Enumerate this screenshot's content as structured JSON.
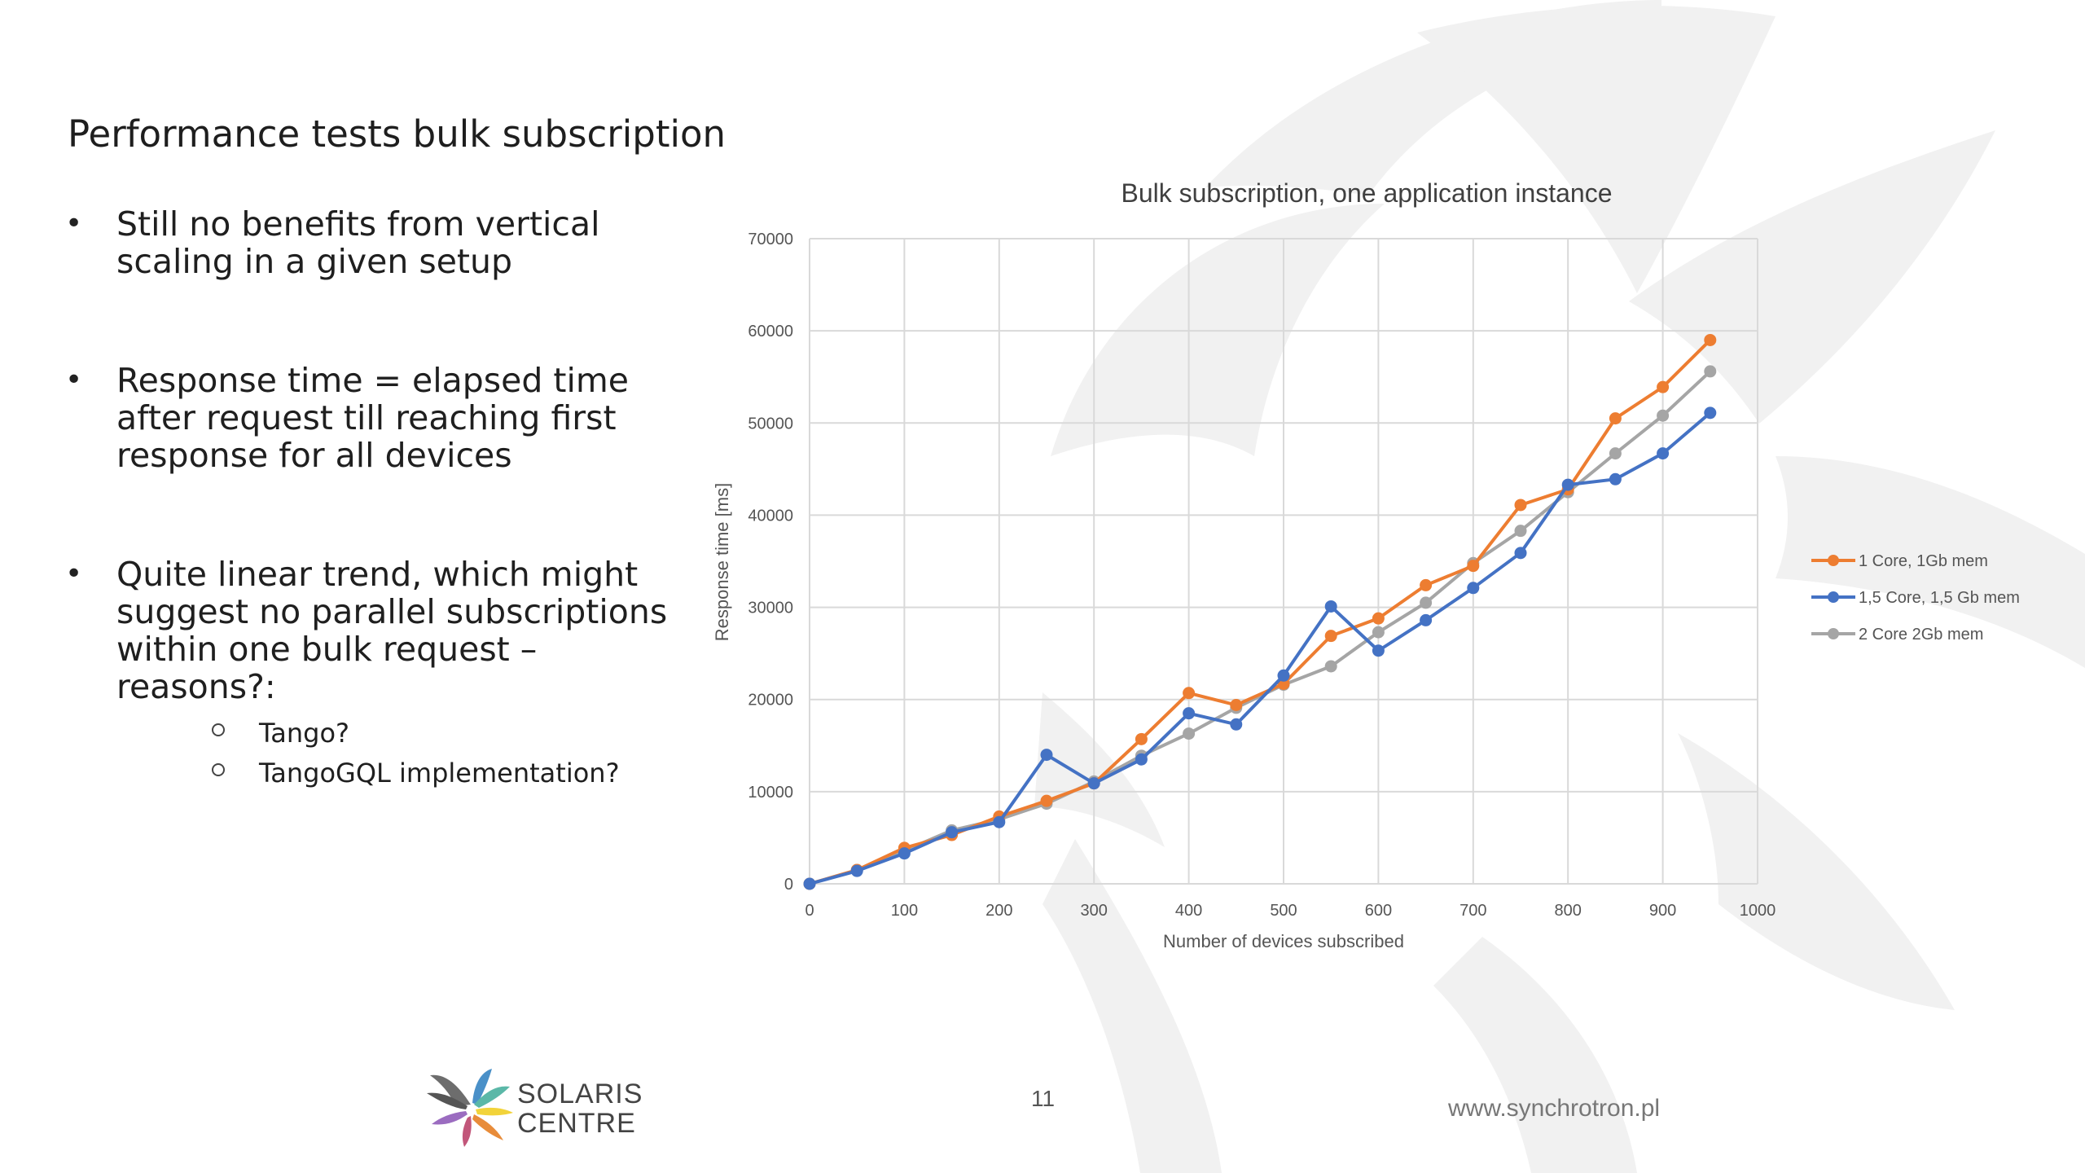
{
  "slide": {
    "title": "Performance tests bulk subscription",
    "bullets": [
      {
        "text": "Still no benefits from vertical scaling in a given setup"
      },
      {
        "text": "Response time = elapsed time after request till reaching first response for all devices"
      },
      {
        "text": "Quite linear trend, which might suggest no parallel subscriptions within one bulk request – reasons?:"
      }
    ],
    "sub_bullets": [
      {
        "text": "Tango?"
      },
      {
        "text": "TangoGQL implementation?"
      }
    ],
    "bullet_glyph": "•",
    "footer": {
      "logo_line1": "SOLARIS",
      "logo_line2": "CENTRE",
      "page_number": "11",
      "website": "www.synchrotron.pl"
    }
  },
  "chart_data": {
    "type": "line",
    "title": "Bulk subscription, one application instance",
    "xlabel": "Number of devices subscribed",
    "ylabel": "Response time [ms]",
    "xlim": [
      0,
      1000
    ],
    "ylim": [
      0,
      70000
    ],
    "x_ticks": [
      0,
      100,
      200,
      300,
      400,
      500,
      600,
      700,
      800,
      900,
      1000
    ],
    "y_ticks": [
      0,
      10000,
      20000,
      30000,
      40000,
      50000,
      60000,
      70000
    ],
    "grid": true,
    "legend_position": "right",
    "x": [
      0,
      50,
      100,
      150,
      200,
      250,
      300,
      350,
      400,
      450,
      500,
      550,
      600,
      650,
      700,
      750,
      800,
      850,
      900,
      950
    ],
    "series": [
      {
        "name": "1 Core, 1Gb mem",
        "color": "#ed7d31",
        "values": [
          0,
          1500,
          3900,
          5300,
          7300,
          9000,
          10900,
          15700,
          20700,
          19400,
          21700,
          26900,
          28800,
          32400,
          34500,
          41100,
          42800,
          50500,
          53900,
          59000
        ]
      },
      {
        "name": "1,5 Core, 1,5 Gb mem",
        "color": "#4472c4",
        "values": [
          0,
          1400,
          3300,
          5600,
          6700,
          14000,
          10900,
          13500,
          18500,
          17300,
          22600,
          30100,
          25300,
          28600,
          32100,
          35900,
          43300,
          43900,
          46700,
          51100
        ]
      },
      {
        "name": "2 Core 2Gb mem",
        "color": "#a5a5a5",
        "values": [
          0,
          1500,
          3600,
          5800,
          7000,
          8700,
          11100,
          13900,
          16300,
          19100,
          21600,
          23600,
          27300,
          30500,
          34800,
          38300,
          42500,
          46700,
          50800,
          55600
        ]
      }
    ]
  }
}
